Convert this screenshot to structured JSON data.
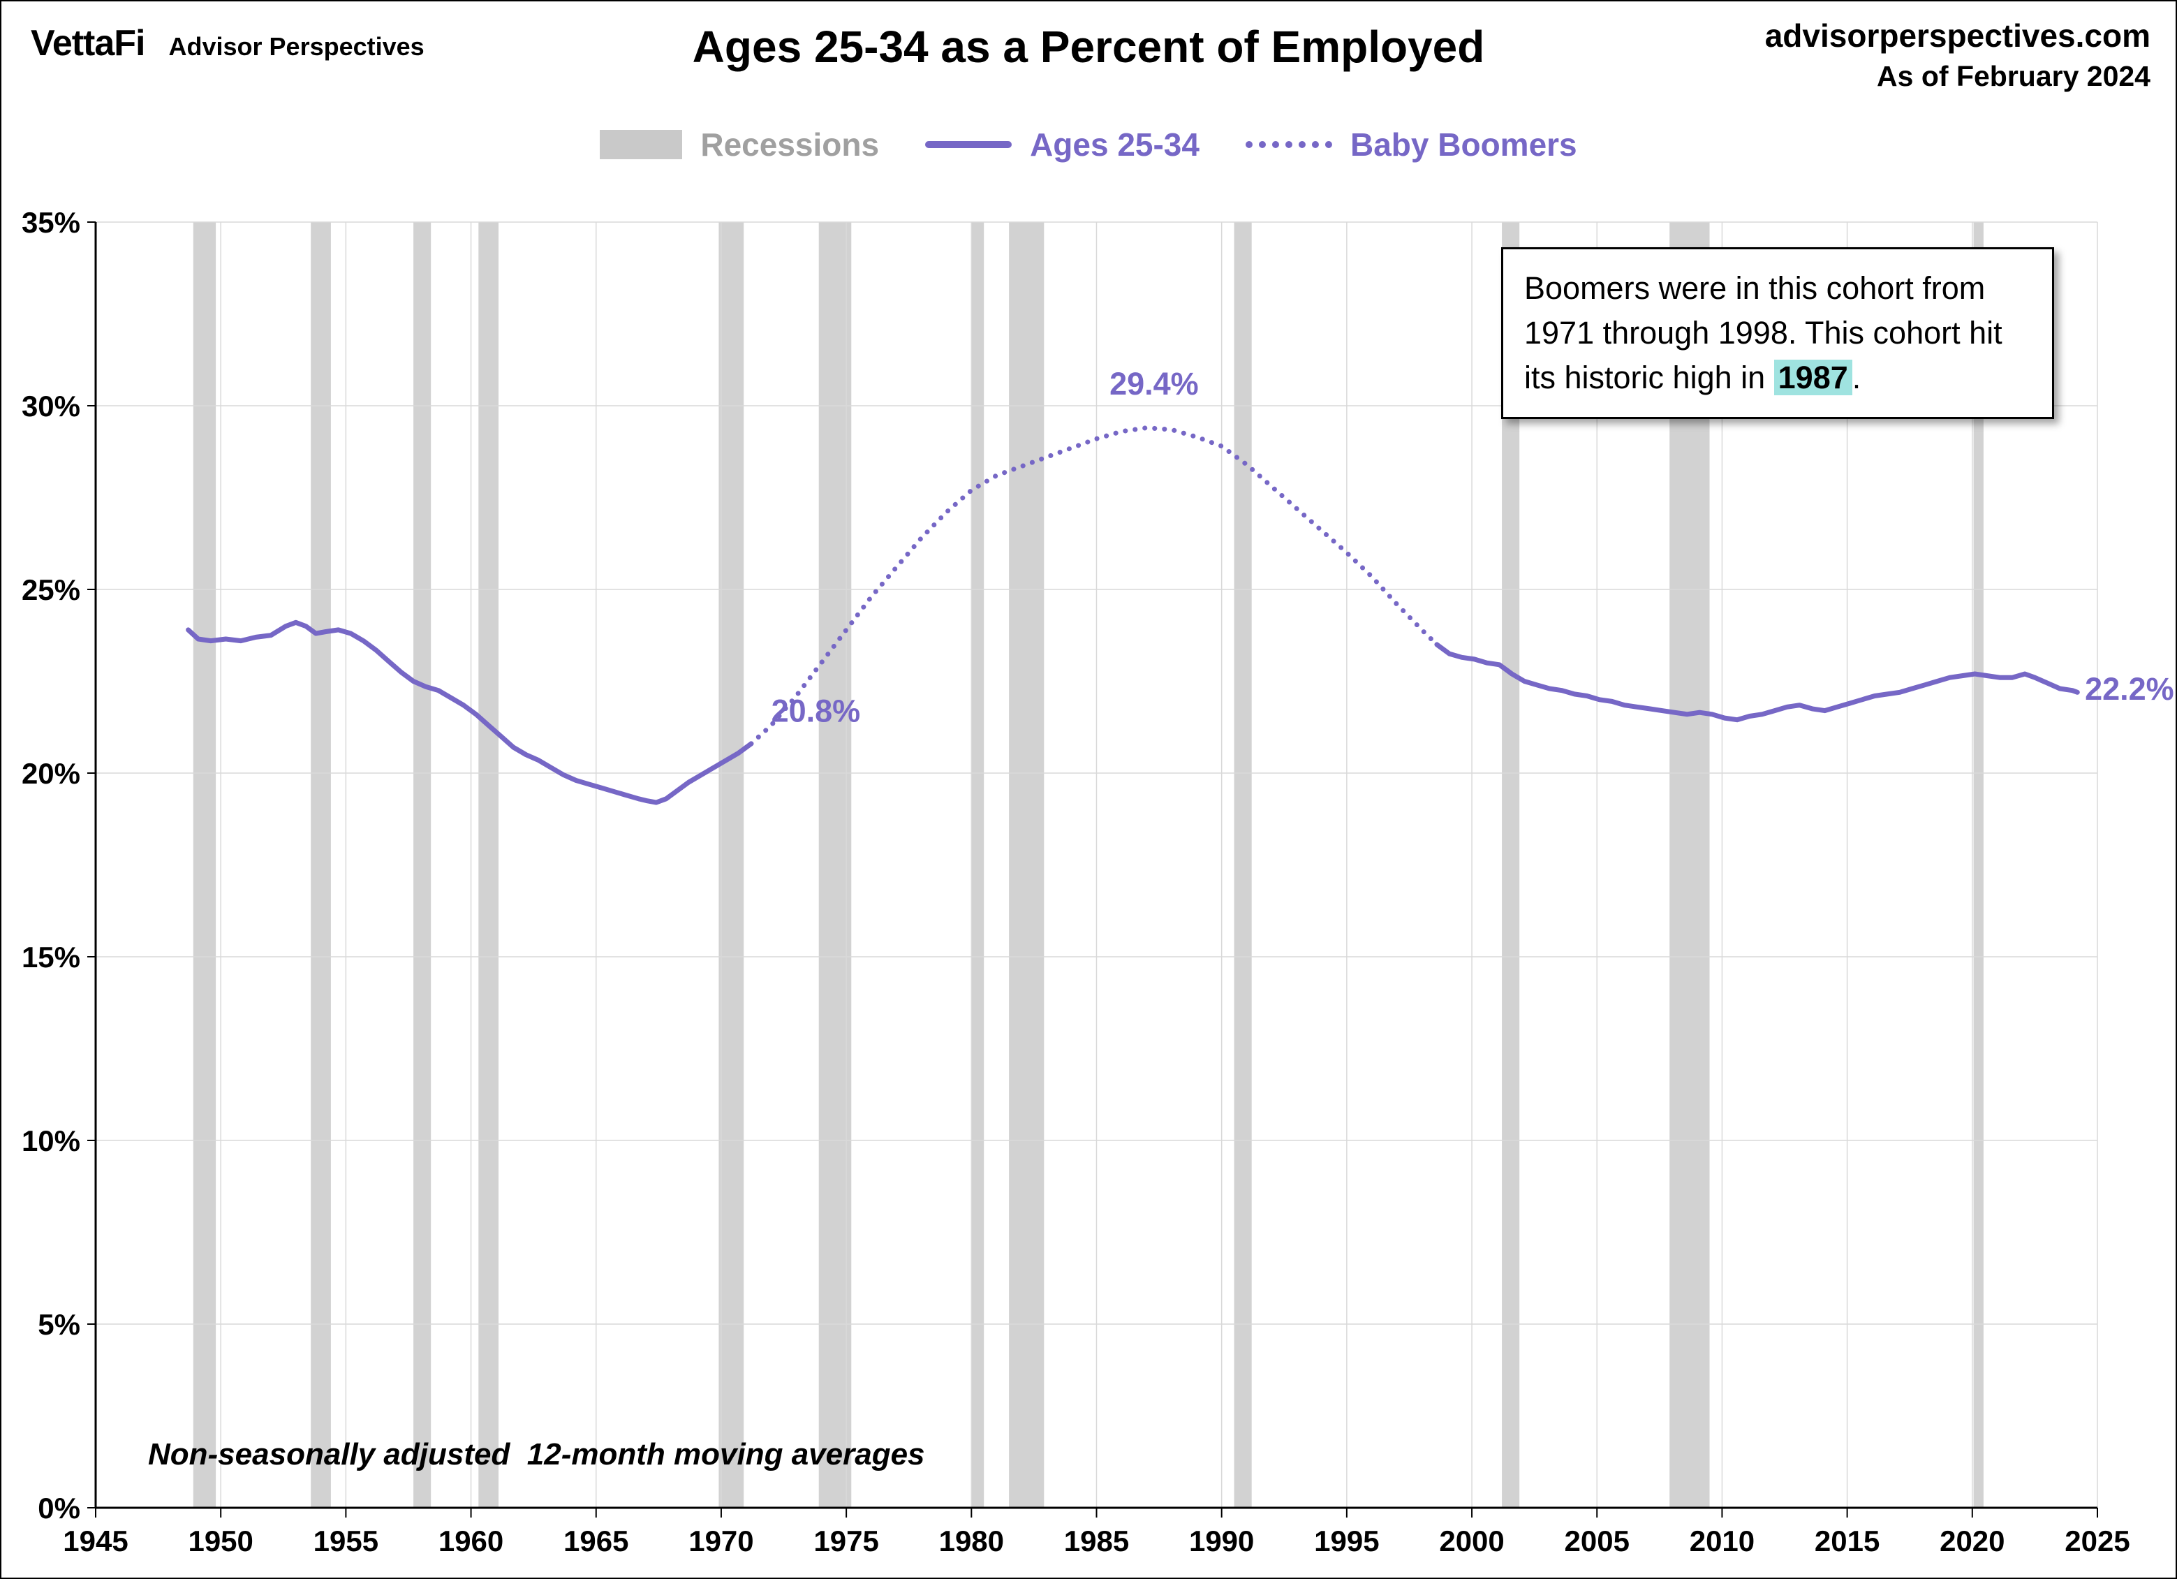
{
  "header": {
    "logo": "VettaFi",
    "logo_sub": "Advisor Perspectives",
    "title": "Ages 25-34 as a Percent of Employed",
    "site": "advisorperspectives.com",
    "as_of": "As of February 2024"
  },
  "legend": {
    "recessions": "Recessions",
    "ages": "Ages 25-34",
    "boomers": "Baby Boomers"
  },
  "callout": {
    "before": "Boomers were in this cohort from 1971 through 1998. This cohort hit its historic high in ",
    "highlight": "1987",
    "after": "."
  },
  "footnote": "Non-seasonally adjusted  12-month moving averages",
  "colors": {
    "purple": "#7667c6",
    "recession": "#d2d2d2",
    "grid": "#d9d9d9",
    "axis": "#000000",
    "legend_gray": "#a0a0a0",
    "highlight": "#9fe3e0"
  },
  "chart_data": {
    "type": "line",
    "title": "Ages 25-34 as a Percent of Employed",
    "xlabel": "",
    "ylabel": "",
    "xlim": [
      1945,
      2025
    ],
    "ylim": [
      0,
      35
    ],
    "grid": true,
    "legend_position": "top",
    "x_ticks": [
      {
        "v": 1945,
        "label": "1945"
      },
      {
        "v": 1950,
        "label": "1950"
      },
      {
        "v": 1955,
        "label": "1955"
      },
      {
        "v": 1960,
        "label": "1960"
      },
      {
        "v": 1965,
        "label": "1965"
      },
      {
        "v": 1970,
        "label": "1970"
      },
      {
        "v": 1975,
        "label": "1975"
      },
      {
        "v": 1980,
        "label": "1980"
      },
      {
        "v": 1985,
        "label": "1985"
      },
      {
        "v": 1990,
        "label": "1990"
      },
      {
        "v": 1995,
        "label": "1995"
      },
      {
        "v": 2000,
        "label": "2000"
      },
      {
        "v": 2005,
        "label": "2005"
      },
      {
        "v": 2010,
        "label": "2010"
      },
      {
        "v": 2015,
        "label": "2015"
      },
      {
        "v": 2020,
        "label": "2020"
      },
      {
        "v": 2025,
        "label": "2025"
      }
    ],
    "y_ticks": [
      {
        "v": 0,
        "label": "0%"
      },
      {
        "v": 5,
        "label": "5%"
      },
      {
        "v": 10,
        "label": "10%"
      },
      {
        "v": 15,
        "label": "15%"
      },
      {
        "v": 20,
        "label": "20%"
      },
      {
        "v": 25,
        "label": "25%"
      },
      {
        "v": 30,
        "label": "30%"
      },
      {
        "v": 35,
        "label": "35%"
      }
    ],
    "recessions": [
      [
        1948.9,
        1949.8
      ],
      [
        1953.6,
        1954.4
      ],
      [
        1957.7,
        1958.4
      ],
      [
        1960.3,
        1961.1
      ],
      [
        1969.9,
        1970.9
      ],
      [
        1973.9,
        1975.2
      ],
      [
        1980.0,
        1980.5
      ],
      [
        1981.5,
        1982.9
      ],
      [
        1990.5,
        1991.2
      ],
      [
        2001.2,
        2001.9
      ],
      [
        2007.9,
        2009.5
      ],
      [
        2020.05,
        2020.45
      ]
    ],
    "series": [
      {
        "name": "Ages 25-34",
        "style": "solid",
        "color": "#7667c6",
        "segments": [
          [
            [
              1948.7,
              23.9
            ],
            [
              1949.1,
              23.65
            ],
            [
              1949.6,
              23.6
            ],
            [
              1950.2,
              23.65
            ],
            [
              1950.8,
              23.6
            ],
            [
              1951.4,
              23.7
            ],
            [
              1952.0,
              23.75
            ],
            [
              1952.6,
              24.0
            ],
            [
              1953.0,
              24.1
            ],
            [
              1953.4,
              24.0
            ],
            [
              1953.8,
              23.8
            ],
            [
              1954.2,
              23.85
            ],
            [
              1954.7,
              23.9
            ],
            [
              1955.2,
              23.8
            ],
            [
              1955.7,
              23.6
            ],
            [
              1956.2,
              23.35
            ],
            [
              1956.7,
              23.05
            ],
            [
              1957.2,
              22.75
            ],
            [
              1957.7,
              22.5
            ],
            [
              1958.2,
              22.35
            ],
            [
              1958.7,
              22.25
            ],
            [
              1959.2,
              22.05
            ],
            [
              1959.7,
              21.85
            ],
            [
              1960.2,
              21.6
            ],
            [
              1960.7,
              21.3
            ],
            [
              1961.2,
              21.0
            ],
            [
              1961.7,
              20.7
            ],
            [
              1962.2,
              20.5
            ],
            [
              1962.7,
              20.35
            ],
            [
              1963.2,
              20.15
            ],
            [
              1963.7,
              19.95
            ],
            [
              1964.2,
              19.8
            ],
            [
              1964.7,
              19.7
            ],
            [
              1965.2,
              19.6
            ],
            [
              1965.7,
              19.5
            ],
            [
              1966.2,
              19.4
            ],
            [
              1966.7,
              19.3
            ],
            [
              1967.0,
              19.25
            ],
            [
              1967.4,
              19.2
            ],
            [
              1967.8,
              19.3
            ],
            [
              1968.2,
              19.5
            ],
            [
              1968.7,
              19.75
            ],
            [
              1969.2,
              19.95
            ],
            [
              1969.7,
              20.15
            ],
            [
              1970.2,
              20.35
            ],
            [
              1970.7,
              20.55
            ],
            [
              1971.2,
              20.8
            ]
          ],
          [
            [
              1998.6,
              23.5
            ],
            [
              1999.1,
              23.25
            ],
            [
              1999.6,
              23.15
            ],
            [
              2000.1,
              23.1
            ],
            [
              2000.6,
              23.0
            ],
            [
              2001.1,
              22.95
            ],
            [
              2001.6,
              22.7
            ],
            [
              2002.1,
              22.5
            ],
            [
              2002.6,
              22.4
            ],
            [
              2003.1,
              22.3
            ],
            [
              2003.6,
              22.25
            ],
            [
              2004.1,
              22.15
            ],
            [
              2004.6,
              22.1
            ],
            [
              2005.1,
              22.0
            ],
            [
              2005.6,
              21.95
            ],
            [
              2006.1,
              21.85
            ],
            [
              2006.6,
              21.8
            ],
            [
              2007.1,
              21.75
            ],
            [
              2007.6,
              21.7
            ],
            [
              2008.1,
              21.65
            ],
            [
              2008.6,
              21.6
            ],
            [
              2009.1,
              21.65
            ],
            [
              2009.6,
              21.6
            ],
            [
              2010.1,
              21.5
            ],
            [
              2010.6,
              21.45
            ],
            [
              2011.1,
              21.55
            ],
            [
              2011.6,
              21.6
            ],
            [
              2012.1,
              21.7
            ],
            [
              2012.6,
              21.8
            ],
            [
              2013.1,
              21.85
            ],
            [
              2013.6,
              21.75
            ],
            [
              2014.1,
              21.7
            ],
            [
              2014.6,
              21.8
            ],
            [
              2015.1,
              21.9
            ],
            [
              2015.6,
              22.0
            ],
            [
              2016.1,
              22.1
            ],
            [
              2016.6,
              22.15
            ],
            [
              2017.1,
              22.2
            ],
            [
              2017.6,
              22.3
            ],
            [
              2018.1,
              22.4
            ],
            [
              2018.6,
              22.5
            ],
            [
              2019.1,
              22.6
            ],
            [
              2019.6,
              22.65
            ],
            [
              2020.1,
              22.7
            ],
            [
              2020.6,
              22.65
            ],
            [
              2021.1,
              22.6
            ],
            [
              2021.6,
              22.6
            ],
            [
              2022.1,
              22.7
            ],
            [
              2022.5,
              22.6
            ],
            [
              2023.0,
              22.45
            ],
            [
              2023.5,
              22.3
            ],
            [
              2024.0,
              22.25
            ],
            [
              2024.2,
              22.2
            ]
          ]
        ]
      },
      {
        "name": "Baby Boomers",
        "style": "dotted",
        "color": "#7667c6",
        "segments": [
          [
            [
              1971.2,
              20.8
            ],
            [
              1972,
              21.3
            ],
            [
              1973,
              22.1
            ],
            [
              1974,
              23.0
            ],
            [
              1975,
              23.9
            ],
            [
              1976,
              24.8
            ],
            [
              1977,
              25.6
            ],
            [
              1978,
              26.4
            ],
            [
              1979,
              27.1
            ],
            [
              1980,
              27.7
            ],
            [
              1981,
              28.1
            ],
            [
              1982,
              28.35
            ],
            [
              1983,
              28.6
            ],
            [
              1984,
              28.85
            ],
            [
              1985,
              29.1
            ],
            [
              1986,
              29.3
            ],
            [
              1987,
              29.4
            ],
            [
              1988,
              29.35
            ],
            [
              1989,
              29.15
            ],
            [
              1990,
              28.9
            ],
            [
              1991,
              28.4
            ],
            [
              1992,
              27.8
            ],
            [
              1993,
              27.2
            ],
            [
              1994,
              26.6
            ],
            [
              1995,
              26.0
            ],
            [
              1996,
              25.35
            ],
            [
              1997,
              24.6
            ],
            [
              1998,
              23.9
            ],
            [
              1998.6,
              23.5
            ]
          ]
        ]
      }
    ],
    "annotations": [
      {
        "label": "20.8%",
        "x": 1972.0,
        "y": 21.4,
        "anchor": "start"
      },
      {
        "label": "29.4%",
        "x": 1987.3,
        "y": 30.3,
        "anchor": "middle"
      },
      {
        "label": "22.2%",
        "x": 2024.5,
        "y": 22.0,
        "anchor": "start"
      }
    ]
  }
}
